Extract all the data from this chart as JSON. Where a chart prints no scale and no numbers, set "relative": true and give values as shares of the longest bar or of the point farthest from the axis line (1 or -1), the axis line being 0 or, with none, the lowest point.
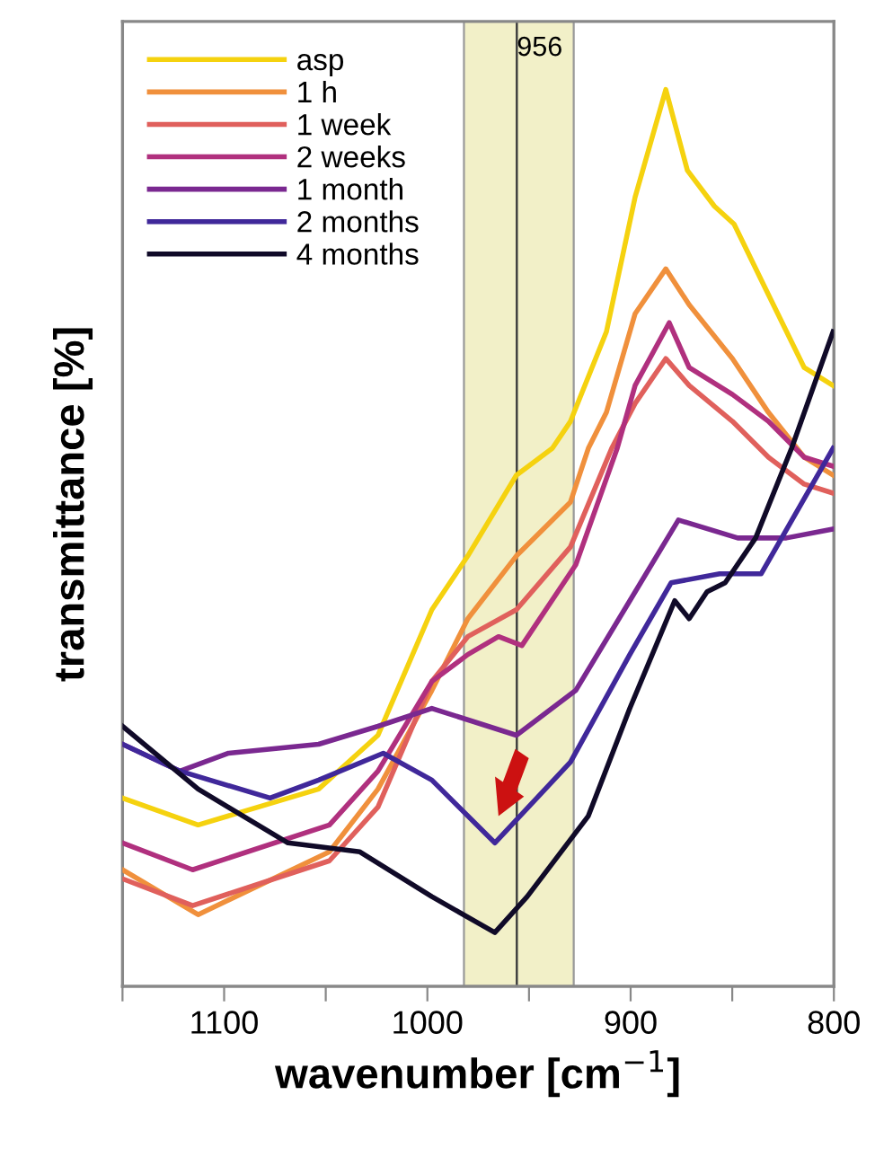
{
  "chart_data": {
    "type": "line",
    "relative": true,
    "xlabel": "wavenumber [cm$^{−1}$]",
    "ylabel": "transmittance [%]",
    "xlim": [
      1150,
      800
    ],
    "xticks": [
      {
        "value": 1150,
        "label": null
      },
      1100,
      {
        "value": 1050,
        "label": null
      },
      1000,
      {
        "value": 950,
        "label": null
      },
      900,
      {
        "value": 850,
        "label": null
      },
      800
    ],
    "grid": false,
    "legend": "top left",
    "marker": "none",
    "line_style": "solid",
    "ref_lines": [
      {
        "axis": "x",
        "value": 956,
        "label": "956",
        "color": "#404040"
      }
    ],
    "bands": [
      {
        "axis": "x",
        "from": 982,
        "to": 928,
        "color": "#f2f0c8"
      }
    ],
    "series": [
      {
        "name": "asp",
        "color": "#f5d20f",
        "x": [
          1150,
          1112.8,
          1053.5,
          1024.3,
          997.8,
          980.1,
          956.2,
          938.5,
          929.6,
          911.9,
          897.8,
          882.7,
          872.1,
          858.8,
          849.1,
          834.1,
          814.6,
          800.4
        ],
        "values": [
          0.21,
          0.18,
          0.22,
          0.28,
          0.42,
          0.48,
          0.57,
          0.6,
          0.63,
          0.73,
          0.88,
          1.0,
          0.91,
          0.87,
          0.85,
          0.78,
          0.69,
          0.67
        ]
      },
      {
        "name": "1 h",
        "color": "#f0903c",
        "x": [
          1150,
          1112.8,
          1048.2,
          1024.3,
          997.8,
          980.1,
          956.2,
          929.6,
          920.8,
          911.9,
          897.8,
          882.7,
          871.2,
          849.9,
          832.2,
          814.6,
          800.4
        ],
        "values": [
          0.13,
          0.08,
          0.15,
          0.22,
          0.33,
          0.41,
          0.48,
          0.54,
          0.6,
          0.64,
          0.75,
          0.8,
          0.76,
          0.7,
          0.64,
          0.59,
          0.57
        ]
      },
      {
        "name": "1 week",
        "color": "#e0605c",
        "x": [
          1150,
          1115.5,
          1048.2,
          1024.3,
          997.8,
          980.1,
          956.2,
          929.6,
          909.3,
          897.8,
          882.7,
          871.2,
          849.9,
          832.2,
          814.6,
          800.4
        ],
        "values": [
          0.12,
          0.09,
          0.14,
          0.2,
          0.34,
          0.39,
          0.42,
          0.49,
          0.6,
          0.65,
          0.7,
          0.67,
          0.63,
          0.59,
          0.56,
          0.55
        ]
      },
      {
        "name": "2 weeks",
        "color": "#b0307e",
        "x": [
          1150,
          1115.5,
          1048.2,
          1024.3,
          997.8,
          980.1,
          965.0,
          953.5,
          927.0,
          906.6,
          897.8,
          881.0,
          871.2,
          849.9,
          832.2,
          814.6,
          800.4
        ],
        "values": [
          0.16,
          0.13,
          0.18,
          0.24,
          0.34,
          0.37,
          0.39,
          0.38,
          0.47,
          0.6,
          0.67,
          0.74,
          0.69,
          0.66,
          0.63,
          0.59,
          0.58
        ]
      },
      {
        "name": "1 month",
        "color": "#7a2890",
        "x": [
          1150,
          1121.7,
          1097.8,
          1053.5,
          1024.3,
          997.8,
          956.2,
          927.0,
          900.4,
          876.5,
          847.3,
          823.4,
          800.4
        ],
        "values": [
          0.27,
          0.24,
          0.26,
          0.27,
          0.29,
          0.31,
          0.28,
          0.33,
          0.43,
          0.52,
          0.5,
          0.5,
          0.51
        ]
      },
      {
        "name": "2 months",
        "color": "#40289a",
        "x": [
          1150,
          1121.7,
          1077.4,
          1053.5,
          1021.7,
          997.8,
          966.8,
          929.6,
          900.4,
          880.1,
          856.2,
          835.8,
          800.4
        ],
        "values": [
          0.27,
          0.24,
          0.21,
          0.23,
          0.26,
          0.23,
          0.16,
          0.25,
          0.37,
          0.45,
          0.46,
          0.46,
          0.6
        ]
      },
      {
        "name": "4 months",
        "color": "#100a28",
        "x": [
          1150,
          1112.8,
          1068.6,
          1033.2,
          997.8,
          966.8,
          950.9,
          920.8,
          900.4,
          878.3,
          871.2,
          862.4,
          853.5,
          838.5,
          820.8,
          800.4
        ],
        "values": [
          0.29,
          0.22,
          0.16,
          0.15,
          0.1,
          0.06,
          0.1,
          0.19,
          0.31,
          0.43,
          0.41,
          0.44,
          0.45,
          0.5,
          0.6,
          0.73
        ]
      }
    ]
  }
}
